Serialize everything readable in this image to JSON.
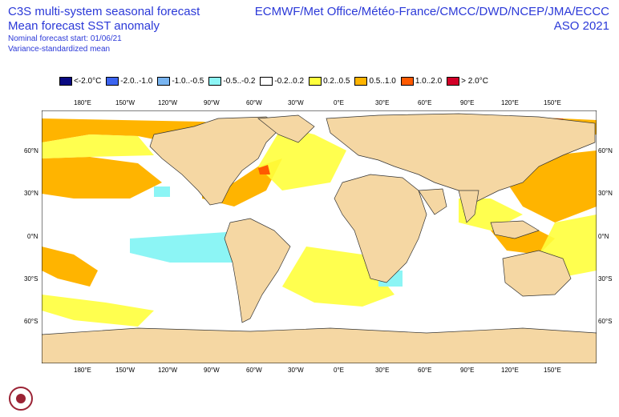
{
  "header": {
    "title_line1": "C3S multi-system seasonal forecast",
    "title_line2": "Mean forecast SST anomaly",
    "subtitle_line1": "Nominal forecast start: 01/06/21",
    "subtitle_line2": "Variance-standardized mean",
    "systems": "ECMWF/Met Office/Météo-France/CMCC/DWD/NCEP/JMA/ECCC",
    "period": "ASO 2021"
  },
  "legend": [
    {
      "label": "<-2.0°C",
      "color": "#0a0a82"
    },
    {
      "label": "-2.0..-1.0",
      "color": "#3c64f0"
    },
    {
      "label": "-1.0..-0.5",
      "color": "#78b4f0"
    },
    {
      "label": "-0.5..-0.2",
      "color": "#8cf5f5"
    },
    {
      "label": "-0.2..0.2",
      "color": "#ffffff"
    },
    {
      "label": "0.2..0.5",
      "color": "#ffff3c"
    },
    {
      "label": "0.5..1.0",
      "color": "#ffb400"
    },
    {
      "label": "1.0..2.0",
      "color": "#ff5a00"
    },
    {
      "label": "> 2.0°C",
      "color": "#d20028"
    }
  ],
  "axes": {
    "lon_labels": [
      "180°E",
      "150°W",
      "120°W",
      "90°W",
      "60°W",
      "30°W",
      "0°E",
      "30°E",
      "60°E",
      "90°E",
      "120°E",
      "150°E"
    ],
    "lat_labels": [
      "60°N",
      "30°N",
      "0°N",
      "30°S",
      "60°S"
    ]
  },
  "colors": {
    "land": "#f5d7a3",
    "ocean_neutral": "#ffffff",
    "text": "#2b39d8"
  },
  "logo": {
    "name": "Copernicus Climate Change Service logo"
  }
}
